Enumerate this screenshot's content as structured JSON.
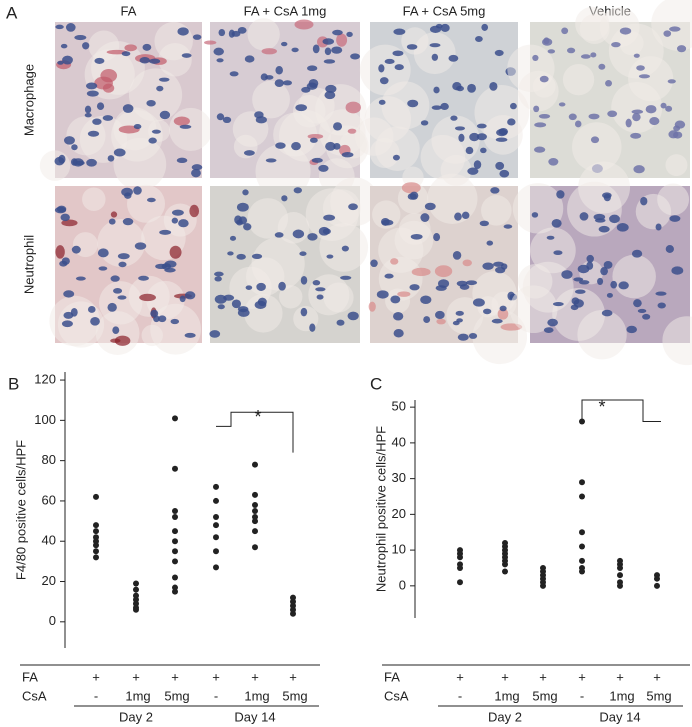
{
  "panel_a": {
    "label": "A",
    "columns": [
      "FA",
      "FA + CsA 1mg",
      "FA + CsA 5mg",
      "Vehicle"
    ],
    "rows": [
      "Macrophage",
      "Neutrophil"
    ]
  },
  "chart_data": [
    {
      "type": "strip",
      "panel": "B",
      "ylabel": "F4/80 positive cells/HPF",
      "ylim": [
        -13,
        124
      ],
      "yticks": [
        0,
        20,
        40,
        60,
        80,
        100,
        120
      ],
      "color": "#222222",
      "row_labels": [
        "FA",
        "CsA"
      ],
      "annotation": "*",
      "days": [
        {
          "label": "Day 2",
          "groups": [
            {
              "fa": "+",
              "csa": "-",
              "values": [
                62,
                48,
                45,
                42,
                40,
                38,
                35,
                32
              ]
            },
            {
              "fa": "+",
              "csa": "1mg",
              "values": [
                19,
                16,
                13,
                11,
                9,
                7,
                6
              ]
            },
            {
              "fa": "+",
              "csa": "5mg",
              "values": [
                101,
                76,
                55,
                52,
                45,
                40,
                35,
                30,
                22,
                17,
                15
              ]
            }
          ]
        },
        {
          "label": "Day 14",
          "groups": [
            {
              "fa": "+",
              "csa": "-",
              "values": [
                67,
                60,
                52,
                48,
                42,
                35,
                27
              ]
            },
            {
              "fa": "+",
              "csa": "1mg",
              "values": [
                78,
                63,
                58,
                55,
                52,
                50,
                45,
                37
              ]
            },
            {
              "fa": "+",
              "csa": "5mg",
              "values": [
                12,
                10,
                8,
                6,
                4
              ]
            }
          ]
        }
      ]
    },
    {
      "type": "strip",
      "panel": "C",
      "ylabel": "Neutrophil positive cells/HPF",
      "ylim": [
        -9,
        52
      ],
      "yticks": [
        0,
        10,
        20,
        30,
        40,
        50
      ],
      "color": "#222222",
      "row_labels": [
        "FA",
        "CsA"
      ],
      "annotation": "*",
      "days": [
        {
          "label": "Day 2",
          "groups": [
            {
              "fa": "+",
              "csa": "-",
              "values": [
                10,
                9,
                8,
                6,
                5,
                1
              ]
            },
            {
              "fa": "+",
              "csa": "1mg",
              "values": [
                12,
                11,
                10,
                9,
                8,
                7,
                6,
                4
              ]
            },
            {
              "fa": "+",
              "csa": "5mg",
              "values": [
                5,
                4,
                3,
                2,
                1,
                0
              ]
            }
          ]
        },
        {
          "label": "Day 14",
          "groups": [
            {
              "fa": "+",
              "csa": "-",
              "values": [
                46,
                29,
                25,
                15,
                11,
                7,
                5,
                4
              ]
            },
            {
              "fa": "+",
              "csa": "1mg",
              "values": [
                7,
                6,
                5,
                3,
                1,
                0
              ]
            },
            {
              "fa": "+",
              "csa": "5mg",
              "values": [
                3,
                2,
                0
              ]
            }
          ]
        }
      ]
    }
  ]
}
